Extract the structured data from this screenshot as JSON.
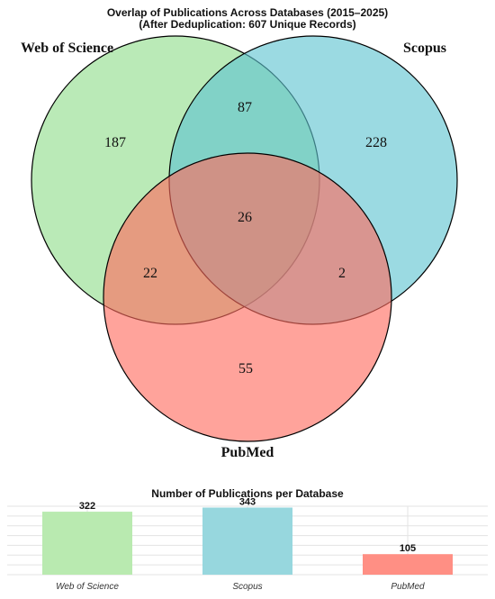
{
  "chart_data": [
    {
      "type": "venn",
      "title": "Overlap of Publications Across Databases (2015–2025)",
      "subtitle": "(After Deduplication: 607 Unique Records)",
      "sets": [
        {
          "name": "Web of Science",
          "color": "#90DD8A"
        },
        {
          "name": "Scopus",
          "color": "#5EC3D0"
        },
        {
          "name": "PubMed",
          "color": "#FF6A5E"
        }
      ],
      "regions": {
        "web_of_science_only": 187,
        "scopus_only": 228,
        "pubmed_only": 55,
        "web_of_science_and_scopus": 87,
        "web_of_science_and_pubmed": 22,
        "scopus_and_pubmed": 2,
        "all_three": 26
      }
    },
    {
      "type": "bar",
      "title": "Number of Publications per Database",
      "categories": [
        "Web of Science",
        "Scopus",
        "PubMed"
      ],
      "values": [
        322,
        343,
        105
      ],
      "colors": [
        "#B9EAB0",
        "#97D7DE",
        "#FF8F84"
      ],
      "ylim": [
        0,
        350
      ],
      "grid": true
    }
  ]
}
